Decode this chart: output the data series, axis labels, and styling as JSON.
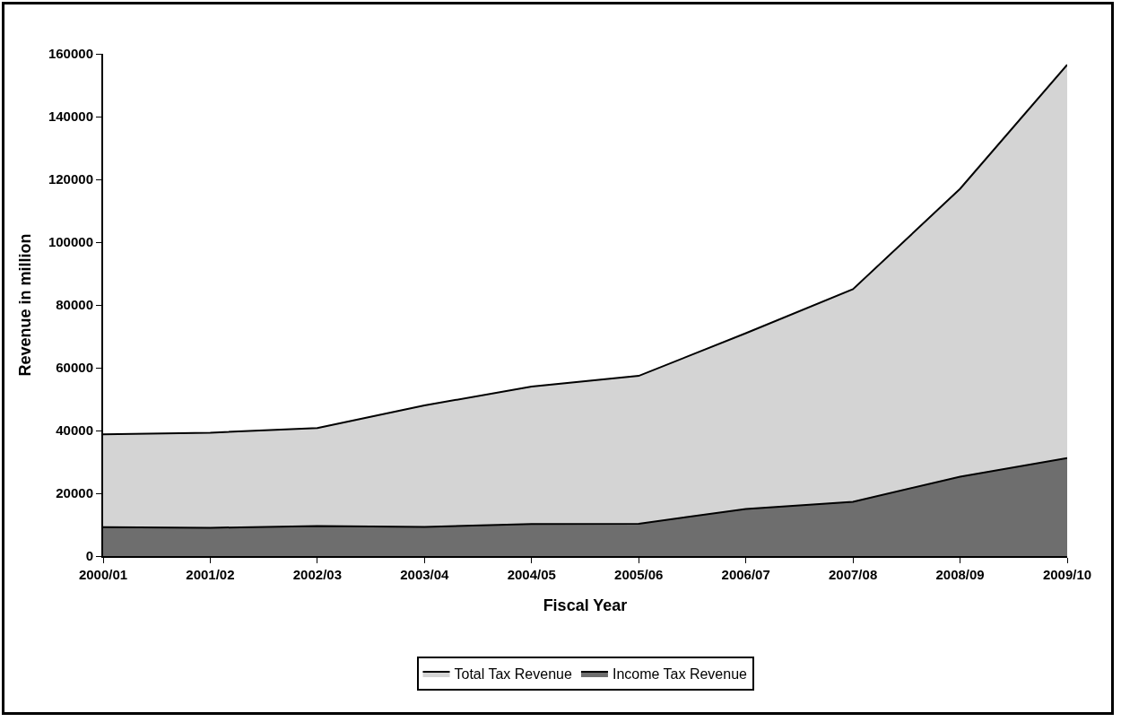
{
  "chart_data": {
    "type": "area",
    "xlabel": "Fiscal Year",
    "ylabel": "Revenue in million",
    "categories": [
      "2000/01",
      "2001/02",
      "2002/03",
      "2003/04",
      "2004/05",
      "2005/06",
      "2006/07",
      "2007/08",
      "2008/09",
      "2009/10"
    ],
    "series": [
      {
        "name": "Total Tax Revenue",
        "color": "#d4d4d4",
        "values": [
          38800,
          39300,
          40800,
          48000,
          54000,
          57400,
          71000,
          85000,
          117000,
          156500
        ]
      },
      {
        "name": "Income Tax Revenue",
        "color": "#6e6e6e",
        "values": [
          9200,
          9000,
          9600,
          9300,
          10200,
          10300,
          15000,
          17300,
          25300,
          31200
        ]
      }
    ],
    "ylim": [
      0,
      160000
    ],
    "yticks": [
      0,
      20000,
      40000,
      60000,
      80000,
      100000,
      120000,
      140000,
      160000
    ],
    "grid": false,
    "legend": "bottom",
    "marker": "none",
    "line_style": "solid"
  }
}
